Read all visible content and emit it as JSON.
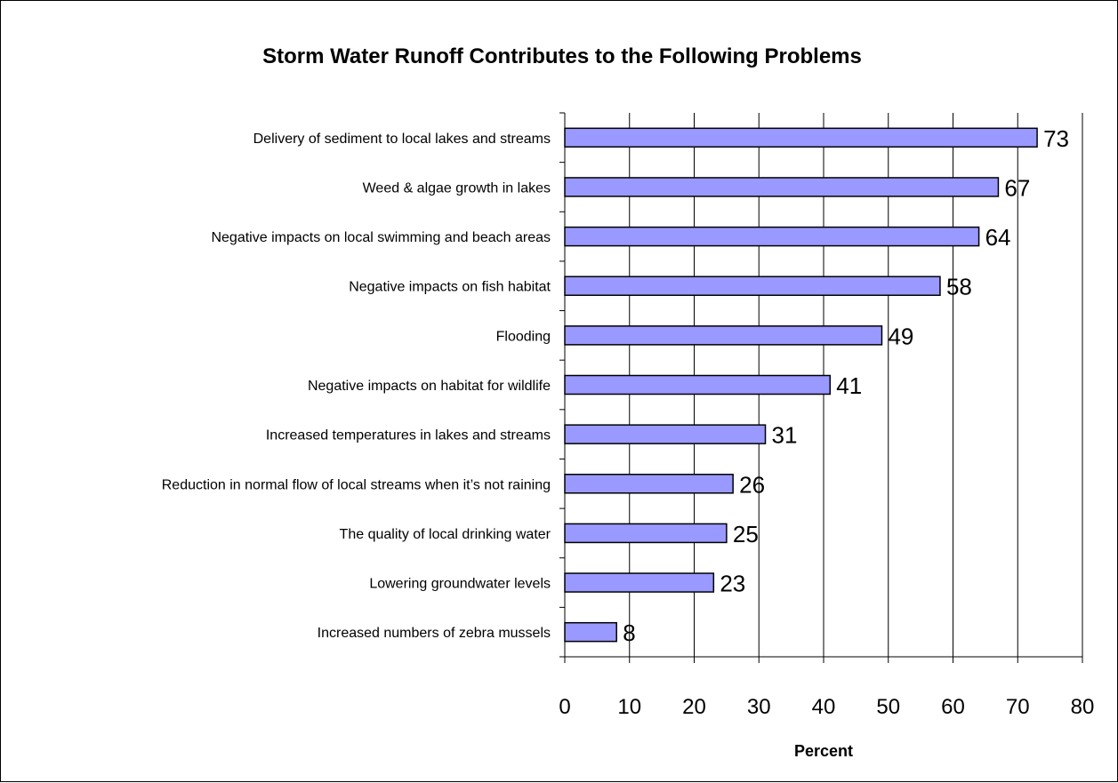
{
  "chart_data": {
    "type": "bar",
    "orientation": "horizontal",
    "title": "Storm Water Runoff Contributes to the Following Problems",
    "xlabel": "Percent",
    "ylabel": "",
    "xlim": [
      0,
      80
    ],
    "x_ticks": [
      "0",
      "10",
      "20",
      "30",
      "40",
      "50",
      "60",
      "70",
      "80"
    ],
    "grid": "vertical",
    "legend": "none",
    "bar_color": "#9999ff",
    "categories": [
      "Delivery of sediment to local lakes and streams",
      "Weed & algae growth in lakes",
      "Negative impacts on local swimming and beach areas",
      "Negative impacts on fish habitat",
      "Flooding",
      "Negative impacts on habitat for wildlife",
      "Increased temperatures in lakes and streams",
      "Reduction in normal flow of local streams when it’s not raining",
      "The quality of local drinking water",
      "Lowering groundwater levels",
      "Increased numbers of zebra mussels"
    ],
    "values": [
      73,
      67,
      64,
      58,
      49,
      41,
      31,
      26,
      25,
      23,
      8
    ],
    "value_labels": [
      "73",
      "67",
      "64",
      "58",
      "49",
      "41",
      "31",
      "26",
      "25",
      "23",
      "8"
    ]
  }
}
